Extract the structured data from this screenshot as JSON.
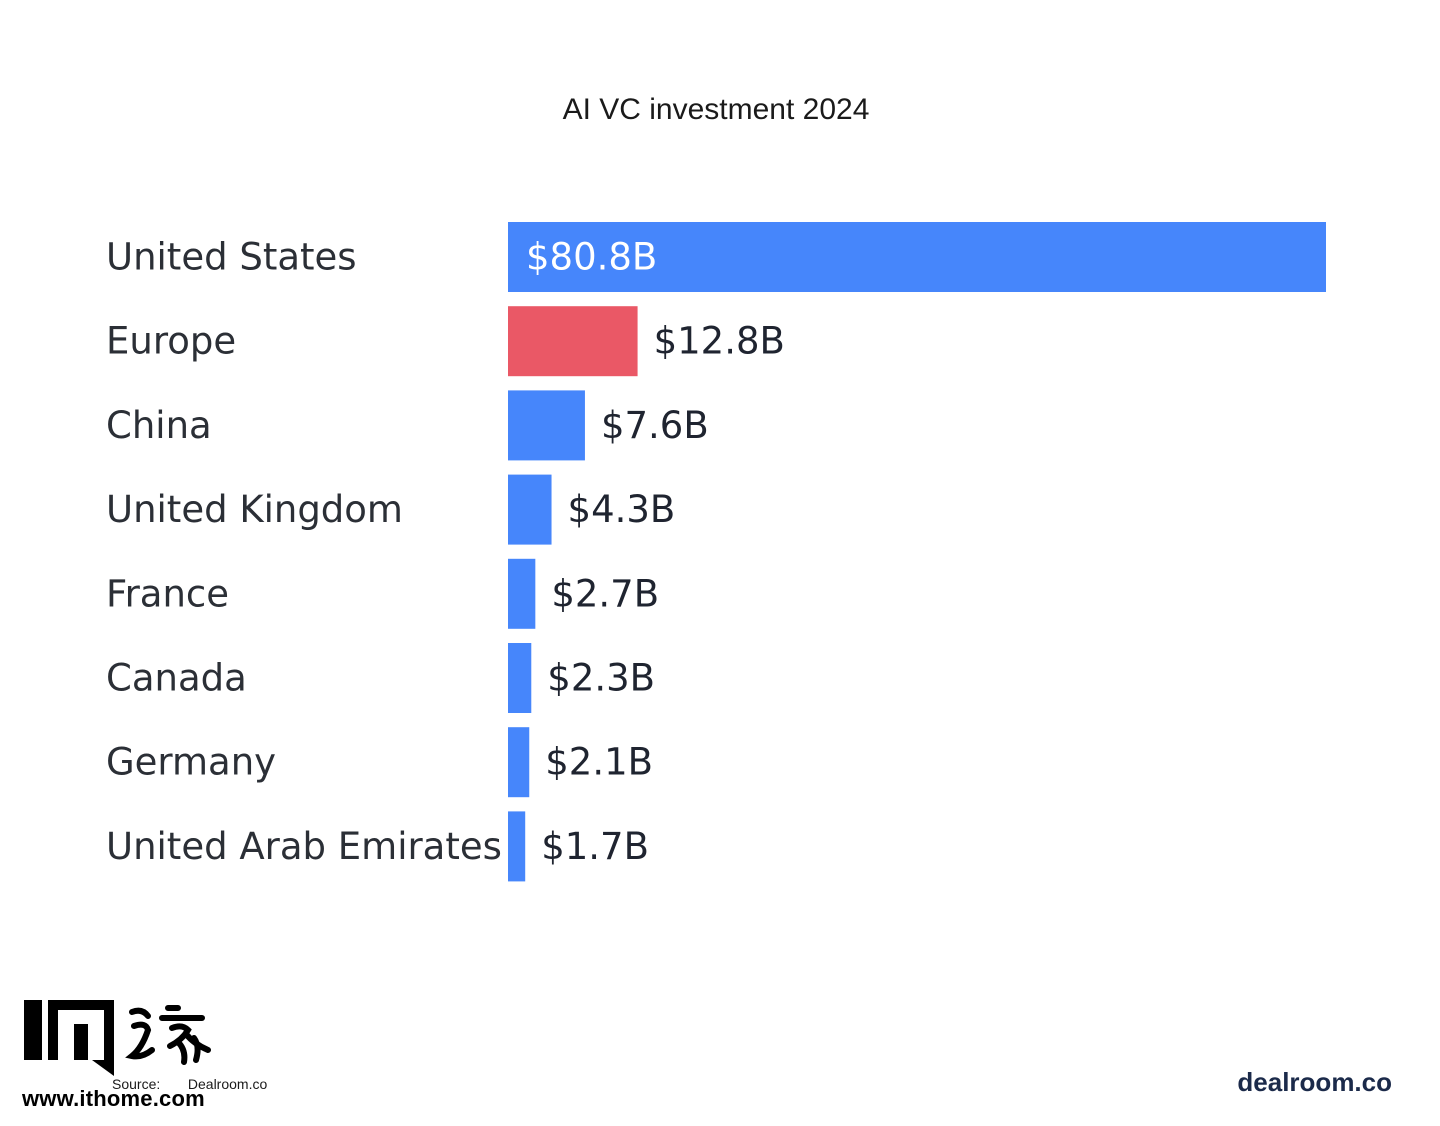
{
  "chart_data": {
    "type": "bar",
    "orientation": "horizontal",
    "title": "AI VC investment 2024",
    "categories": [
      "United States",
      "Europe",
      "China",
      "United Kingdom",
      "France",
      "Canada",
      "Germany",
      "United Arab Emirates"
    ],
    "values": [
      80.8,
      12.8,
      7.6,
      4.3,
      2.7,
      2.3,
      2.1,
      1.7
    ],
    "value_labels": [
      "$80.8B",
      "$12.8B",
      "$7.6B",
      "$4.3B",
      "$2.7B",
      "$2.3B",
      "$2.1B",
      "$1.7B"
    ],
    "unit": "USD billions",
    "highlight_category": "Europe",
    "xlim": [
      0,
      80.8
    ],
    "grid": false,
    "colors": {
      "default": "#4686fb",
      "highlight": "#ea5866",
      "label_inside": "#ffffff",
      "label_outside": "#1f2430"
    }
  },
  "source": {
    "label": "Source:",
    "value": "Dealroom.co"
  },
  "brand": "dealroom.co",
  "watermark": {
    "logo_text": "IT之家",
    "url": "www.ithome.com"
  }
}
